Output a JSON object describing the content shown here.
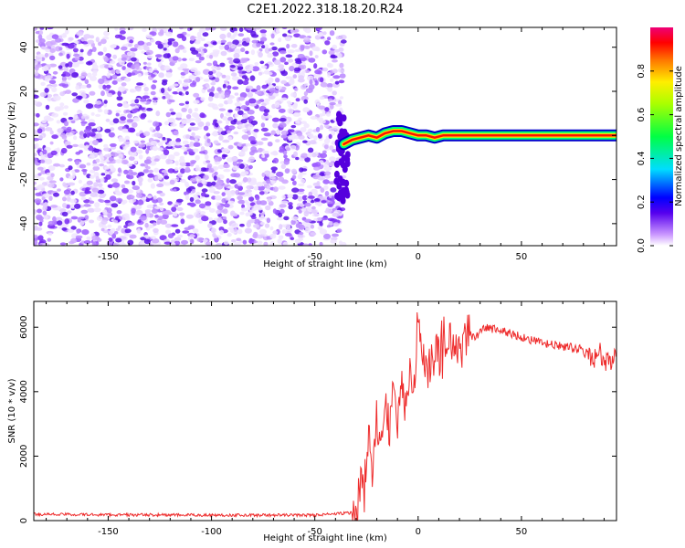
{
  "title": "C2E1.2022.318.18.20.R24",
  "colors": {
    "snr_line": "#ee2c2c",
    "axis": "#000000"
  },
  "chart_data": [
    {
      "type": "heatmap",
      "xlabel": "Height of straight line (km)",
      "ylabel": "Frequency (Hz)",
      "xlim": [
        -186,
        96
      ],
      "ylim": [
        -50,
        49
      ],
      "xticks": [
        -150,
        -100,
        -50,
        0,
        50
      ],
      "yticks": [
        -40,
        -20,
        0,
        20,
        40
      ],
      "noise_region": {
        "x": [
          -186,
          -36
        ],
        "y": [
          -50,
          49
        ],
        "level": "0.1-0.3"
      },
      "signal_track": {
        "x": [
          -36,
          -32,
          -28,
          -24,
          -20,
          -16,
          -12,
          -8,
          -4,
          0,
          4,
          8,
          12,
          20,
          40,
          60,
          80,
          96
        ],
        "y": [
          -4,
          -2,
          -1,
          0,
          -1,
          1,
          2,
          2,
          1,
          0,
          0,
          -1,
          0,
          0,
          0,
          0,
          0,
          0
        ]
      },
      "colorbar": {
        "label": "Normalized spectral amplitude",
        "range": [
          0,
          1
        ],
        "ticks": [
          "0.0",
          "0.2",
          "0.4",
          "0.6",
          "0.8"
        ],
        "tick_values": [
          0,
          0.2,
          0.4,
          0.6,
          0.8
        ]
      }
    },
    {
      "type": "line",
      "xlabel": "Height of straight line (km)",
      "ylabel": "SNR (10 * v/v)",
      "xlim": [
        -186,
        96
      ],
      "ylim": [
        0,
        6800
      ],
      "xticks": [
        -150,
        -100,
        -50,
        0,
        50
      ],
      "yticks": [
        0,
        2000,
        4000,
        6000
      ],
      "series": [
        {
          "x": [
            -186,
            -150,
            -100,
            -50,
            -30,
            -28,
            -26,
            -24,
            -22,
            -20,
            -18,
            -16,
            -14,
            -12,
            -10,
            -8,
            -6,
            -4,
            -2,
            0,
            4,
            8,
            12,
            16,
            20,
            24,
            28,
            32,
            40,
            50,
            60,
            70,
            80,
            84,
            86,
            88,
            90,
            92,
            96
          ],
          "y": [
            200,
            180,
            170,
            170,
            250,
            1200,
            800,
            2500,
            1500,
            3200,
            2200,
            3600,
            2800,
            3900,
            3000,
            4200,
            3600,
            4600,
            4000,
            6500,
            4600,
            5200,
            5000,
            5600,
            5200,
            5800,
            5700,
            6000,
            5900,
            5700,
            5500,
            5400,
            5300,
            5000,
            5100,
            5200,
            4800,
            5000,
            5000
          ]
        }
      ]
    }
  ]
}
